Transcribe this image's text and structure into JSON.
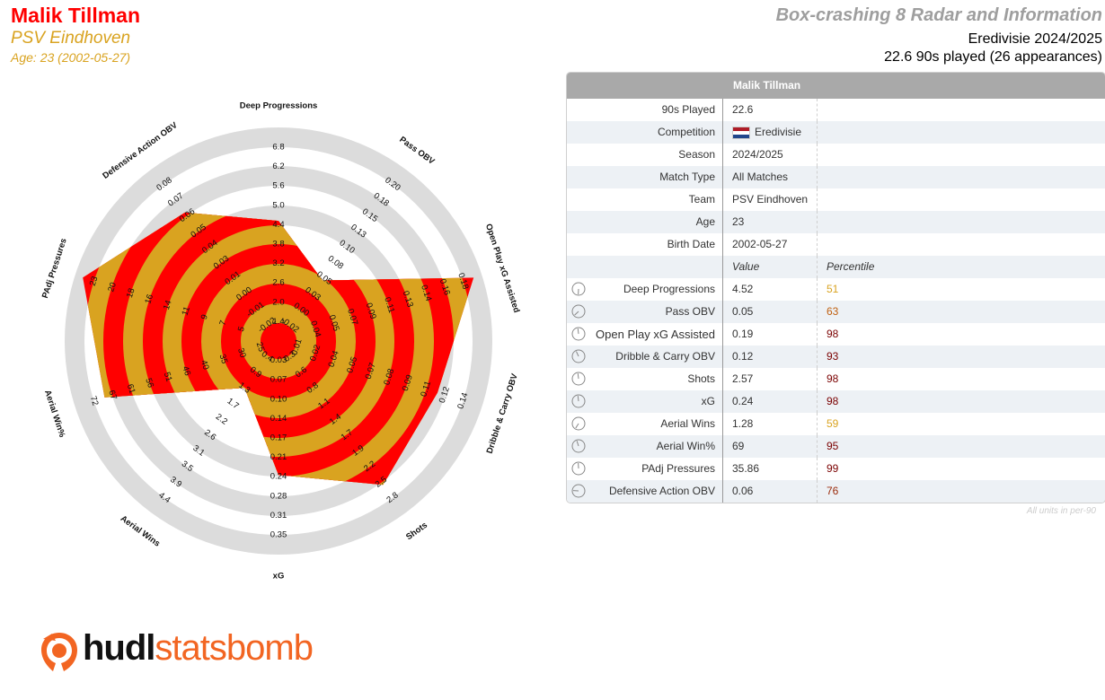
{
  "player": {
    "name": "Malik Tillman",
    "team": "PSV Eindhoven",
    "age_line": "Age: 23 (2002-05-27)"
  },
  "header": {
    "title": "Box-crashing 8 Radar and Information",
    "competition_line": "Eredivisie 2024/2025",
    "minutes_line": "22.6 90s played (26 appearances)"
  },
  "chart_data": {
    "type": "radar",
    "colors": {
      "ring_red": "#ff0000",
      "ring_gold": "#d9a320",
      "outer_ring": "#dcdcdc"
    },
    "axes": [
      {
        "name": "Deep Progressions",
        "value": 4.52,
        "ticks": [
          "1.4",
          "2.0",
          "2.6",
          "3.2",
          "3.8",
          "4.4",
          "5.0",
          "5.6",
          "6.2",
          "6.8"
        ]
      },
      {
        "name": "Pass OBV",
        "value": 0.05,
        "ticks": [
          "-0.02",
          "0.00",
          "0.03",
          "0.05",
          "0.08",
          "0.10",
          "0.13",
          "0.15",
          "0.18",
          "0.20"
        ]
      },
      {
        "name": "Open Play xG Assisted",
        "value": 0.19,
        "ticks": [
          "0.04",
          "0.05",
          "0.07",
          "0.09",
          "0.11",
          "0.13",
          "0.14",
          "0.16",
          "0.18"
        ]
      },
      {
        "name": "Dribble & Carry OBV",
        "value": 0.12,
        "ticks": [
          "0.01",
          "0.02",
          "0.04",
          "0.05",
          "0.07",
          "0.08",
          "0.09",
          "0.11",
          "0.12",
          "0.14"
        ]
      },
      {
        "name": "Shots",
        "value": 2.57,
        "ticks": [
          "0.3",
          "0.6",
          "0.8",
          "1.1",
          "1.4",
          "1.7",
          "1.9",
          "2.2",
          "2.5",
          "2.8"
        ]
      },
      {
        "name": "xG",
        "value": 0.24,
        "ticks": [
          "0.03",
          "0.07",
          "0.10",
          "0.14",
          "0.17",
          "0.21",
          "0.24",
          "0.28",
          "0.31",
          "0.35"
        ]
      },
      {
        "name": "Aerial Wins",
        "value": 1.28,
        "ticks": [
          "0.4",
          "0.9",
          "1.3",
          "1.7",
          "2.2",
          "2.6",
          "3.1",
          "3.5",
          "3.9",
          "4.4"
        ]
      },
      {
        "name": "Aerial Win%",
        "value": 69,
        "ticks": [
          "25",
          "30",
          "35",
          "40",
          "46",
          "51",
          "56",
          "61",
          "67",
          "72"
        ]
      },
      {
        "name": "PAdj Pressures",
        "value": 35.86,
        "ticks": [
          "5",
          "7",
          "9",
          "11",
          "14",
          "16",
          "18",
          "20",
          "23"
        ]
      },
      {
        "name": "Defensive Action OBV",
        "value": 0.06,
        "ticks": [
          "-0.02",
          "-0.01",
          "0.00",
          "0.01",
          "0.03",
          "0.04",
          "0.05",
          "0.06",
          "0.07",
          "0.08"
        ]
      }
    ]
  },
  "table": {
    "header": "Malik Tillman",
    "info_rows": [
      {
        "label": "90s Played",
        "value": "22.6"
      },
      {
        "label": "Competition",
        "value": "Eredivisie"
      },
      {
        "label": "Season",
        "value": "2024/2025"
      },
      {
        "label": "Match Type",
        "value": "All Matches"
      },
      {
        "label": "Team",
        "value": "PSV Eindhoven"
      },
      {
        "label": "Age",
        "value": "23"
      },
      {
        "label": "Birth Date",
        "value": "2002-05-27"
      }
    ],
    "col_value": "Value",
    "col_percentile": "Percentile",
    "metric_rows": [
      {
        "label": "Deep Progressions",
        "value": "4.52",
        "percentile": "51",
        "color": "#d9a320"
      },
      {
        "label": "Pass OBV",
        "value": "0.05",
        "percentile": "63",
        "color": "#c06010"
      },
      {
        "label": "Open Play xG Assisted",
        "value": "0.19",
        "percentile": "98",
        "color": "#7a0000"
      },
      {
        "label": "Dribble & Carry OBV",
        "value": "0.12",
        "percentile": "93",
        "color": "#7a0000"
      },
      {
        "label": "Shots",
        "value": "2.57",
        "percentile": "98",
        "color": "#7a0000"
      },
      {
        "label": "xG",
        "value": "0.24",
        "percentile": "98",
        "color": "#7a0000"
      },
      {
        "label": "Aerial Wins",
        "value": "1.28",
        "percentile": "59",
        "color": "#d9a320"
      },
      {
        "label": "Aerial Win%",
        "value": "69",
        "percentile": "95",
        "color": "#7a0000"
      },
      {
        "label": "PAdj Pressures",
        "value": "35.86",
        "percentile": "99",
        "color": "#7a0000"
      },
      {
        "label": "Defensive Action OBV",
        "value": "0.06",
        "percentile": "76",
        "color": "#9a2a0a"
      }
    ],
    "footnote": "All units in per-90"
  },
  "logo": {
    "part1": "hudl",
    "part2": "statsbomb"
  }
}
